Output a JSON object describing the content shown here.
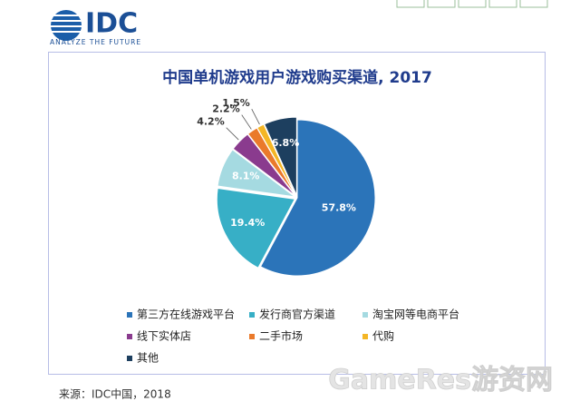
{
  "logo": {
    "name": "IDC",
    "tagline": "ANALYZE THE FUTURE"
  },
  "chart_data": {
    "type": "pie",
    "title": "中国单机游戏用户游戏购买渠道, 2017",
    "categories": [
      "第三方在线游戏平台",
      "发行商官方渠道",
      "淘宝网等电商平台",
      "线下实体店",
      "二手市场",
      "代购",
      "其他"
    ],
    "values": [
      57.8,
      19.4,
      8.1,
      4.2,
      2.2,
      1.5,
      6.8
    ],
    "value_labels": [
      "57.8%",
      "19.4%",
      "8.1%",
      "4.2%",
      "2.2%",
      "1.5%",
      "6.8%"
    ],
    "colors": [
      "#2b74b9",
      "#37afc6",
      "#a5dae1",
      "#8a3b8e",
      "#ea7a2b",
      "#f4b625",
      "#1d3f5f"
    ]
  },
  "source": "来源：IDC中国，2018",
  "watermark": "GameRes游资网"
}
